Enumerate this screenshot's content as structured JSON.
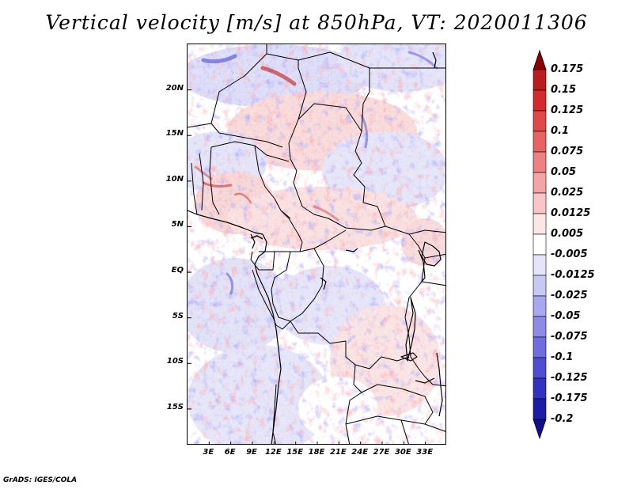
{
  "title": "Vertical velocity [m/s] at 850hPa, VT: 2020011306",
  "map": {
    "region": "Central Africa",
    "variable": "Vertical velocity",
    "units": "m/s",
    "level": "850hPa",
    "valid_time": "2020011306",
    "lon_range_deg": [
      0,
      36
    ],
    "lat_range_deg": [
      -19,
      25
    ],
    "lat_ticks": [
      {
        "value": 20,
        "label": "20N"
      },
      {
        "value": 15,
        "label": "15N"
      },
      {
        "value": 10,
        "label": "10N"
      },
      {
        "value": 5,
        "label": "5N"
      },
      {
        "value": 0,
        "label": "EQ"
      },
      {
        "value": -5,
        "label": "5S"
      },
      {
        "value": -10,
        "label": "10S"
      },
      {
        "value": -15,
        "label": "15S"
      }
    ],
    "lon_ticks": [
      {
        "value": 3,
        "label": "3E"
      },
      {
        "value": 6,
        "label": "6E"
      },
      {
        "value": 9,
        "label": "9E"
      },
      {
        "value": 12,
        "label": "12E"
      },
      {
        "value": 15,
        "label": "15E"
      },
      {
        "value": 18,
        "label": "18E"
      },
      {
        "value": 21,
        "label": "21E"
      },
      {
        "value": 24,
        "label": "24E"
      },
      {
        "value": 27,
        "label": "27E"
      },
      {
        "value": 30,
        "label": "30E"
      },
      {
        "value": 33,
        "label": "33E"
      }
    ]
  },
  "colorbar": {
    "levels": [
      {
        "label": "0.175",
        "color": "#a01010"
      },
      {
        "label": "0.15",
        "color": "#b81c1c"
      },
      {
        "label": "0.125",
        "color": "#d42a2a"
      },
      {
        "label": "0.1",
        "color": "#e04848"
      },
      {
        "label": "0.075",
        "color": "#e86464"
      },
      {
        "label": "0.05",
        "color": "#ee8282"
      },
      {
        "label": "0.025",
        "color": "#f4a4a4"
      },
      {
        "label": "0.0125",
        "color": "#f8c6c6"
      },
      {
        "label": "0.005",
        "color": "#fce6e6"
      },
      {
        "label": "-0.005",
        "color": "#ffffff"
      },
      {
        "label": "-0.0125",
        "color": "#e4e4fa"
      },
      {
        "label": "-0.025",
        "color": "#c8c8f4"
      },
      {
        "label": "-0.05",
        "color": "#a8a8ee"
      },
      {
        "label": "-0.075",
        "color": "#8c8ce6"
      },
      {
        "label": "-0.1",
        "color": "#6e6ede"
      },
      {
        "label": "-0.125",
        "color": "#4e4ed2"
      },
      {
        "label": "-0.175",
        "color": "#3232c0"
      },
      {
        "label": "-0.2",
        "color": "#1c1ca6"
      }
    ],
    "top_arrow_color": "#8c0000",
    "bottom_arrow_color": "#10108c"
  },
  "footer": "GrADS: IGES/COLA"
}
